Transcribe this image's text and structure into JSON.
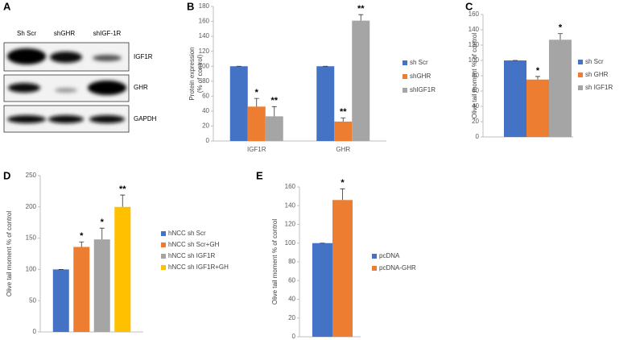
{
  "blot": {
    "panel_label": "A",
    "lanes": [
      "Sh Scr",
      "shGHR",
      "shIGF-1R"
    ],
    "rows": [
      "IGF1R",
      "GHR",
      "GAPDH"
    ]
  },
  "chart_data": [
    {
      "type": "bar",
      "panel_label": "B",
      "ylabel": [
        "Protein expression",
        "(% of control)"
      ],
      "categories": [
        "IGF1R",
        "GHR"
      ],
      "series": [
        {
          "name": "sh Scr",
          "color": "#4472c4",
          "values": [
            100,
            100
          ],
          "errors": [
            0,
            0
          ],
          "significance": [
            null,
            null
          ]
        },
        {
          "name": "shGHR",
          "color": "#ed7d31",
          "values": [
            46,
            26
          ],
          "errors": [
            11,
            5
          ],
          "significance": [
            "*",
            "**"
          ]
        },
        {
          "name": "shIGF1R",
          "color": "#a5a5a5",
          "values": [
            33,
            161
          ],
          "errors": [
            13,
            8
          ],
          "significance": [
            "**",
            "**"
          ]
        }
      ],
      "ylim": [
        0,
        180
      ],
      "yticks": [
        0,
        20,
        40,
        60,
        80,
        100,
        120,
        140,
        160,
        180
      ],
      "legend": "right"
    },
    {
      "type": "bar",
      "panel_label": "C",
      "ylabel": [
        "Olive tail moment % of control"
      ],
      "series": [
        {
          "name": "sh Scr",
          "color": "#4472c4",
          "values": [
            100
          ],
          "errors": [
            0
          ],
          "significance": [
            null
          ]
        },
        {
          "name": "sh GHR",
          "color": "#ed7d31",
          "values": [
            75
          ],
          "errors": [
            4
          ],
          "significance": [
            "*"
          ]
        },
        {
          "name": "sh IGF1R",
          "color": "#a5a5a5",
          "values": [
            127
          ],
          "errors": [
            8
          ],
          "significance": [
            "*"
          ]
        }
      ],
      "ylim": [
        0,
        160
      ],
      "yticks": [
        0,
        20,
        40,
        60,
        80,
        100,
        120,
        140,
        160
      ],
      "legend": "right"
    },
    {
      "type": "bar",
      "panel_label": "D",
      "ylabel": [
        "Olive tail moment % of control"
      ],
      "series": [
        {
          "name": "hNCC sh Scr",
          "color": "#4472c4",
          "values": [
            100
          ],
          "errors": [
            0
          ],
          "significance": [
            null
          ]
        },
        {
          "name": "hNCC sh Scr+GH",
          "color": "#ed7d31",
          "values": [
            136
          ],
          "errors": [
            8
          ],
          "significance": [
            "*"
          ]
        },
        {
          "name": "hNCC sh IGF1R",
          "color": "#a5a5a5",
          "values": [
            148
          ],
          "errors": [
            18
          ],
          "significance": [
            "*"
          ]
        },
        {
          "name": "hNCC sh IGF1R+GH",
          "color": "#ffc000",
          "values": [
            200
          ],
          "errors": [
            19
          ],
          "significance": [
            "**"
          ]
        }
      ],
      "ylim": [
        0,
        250
      ],
      "yticks": [
        0,
        50,
        100,
        150,
        200,
        250
      ],
      "legend": "right"
    },
    {
      "type": "bar",
      "panel_label": "E",
      "ylabel": [
        "Olive tail moment % of control"
      ],
      "series": [
        {
          "name": "pcDNA",
          "color": "#4472c4",
          "values": [
            100
          ],
          "errors": [
            0
          ],
          "significance": [
            null
          ]
        },
        {
          "name": "pcDNA-GHR",
          "color": "#ed7d31",
          "values": [
            146
          ],
          "errors": [
            12
          ],
          "significance": [
            "*"
          ]
        }
      ],
      "ylim": [
        0,
        160
      ],
      "yticks": [
        0,
        20,
        40,
        60,
        80,
        100,
        120,
        140,
        160
      ],
      "legend": "right"
    }
  ]
}
